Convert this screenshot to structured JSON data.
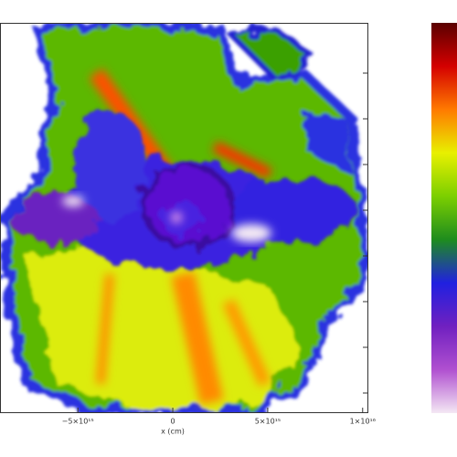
{
  "chart_data": {
    "type": "image",
    "xlabel": "x (cm)",
    "xlim": [
      -9100000000000000.0,
      1.03e+16
    ],
    "xticks": [
      {
        "value": -5000000000000000.0,
        "label": "−5×10¹⁵"
      },
      {
        "value": 0,
        "label": "0"
      },
      {
        "value": 5000000000000000.0,
        "label": "5×10¹⁵"
      },
      {
        "value": 1e+16,
        "label": "1×10¹⁶"
      }
    ],
    "colormap": [
      "#5a0000",
      "#d40000",
      "#ff7a00",
      "#e8f000",
      "#7ccf00",
      "#1e8c1e",
      "#2020e0",
      "#7020c0",
      "#b050d0",
      "#f4e8f4"
    ]
  }
}
